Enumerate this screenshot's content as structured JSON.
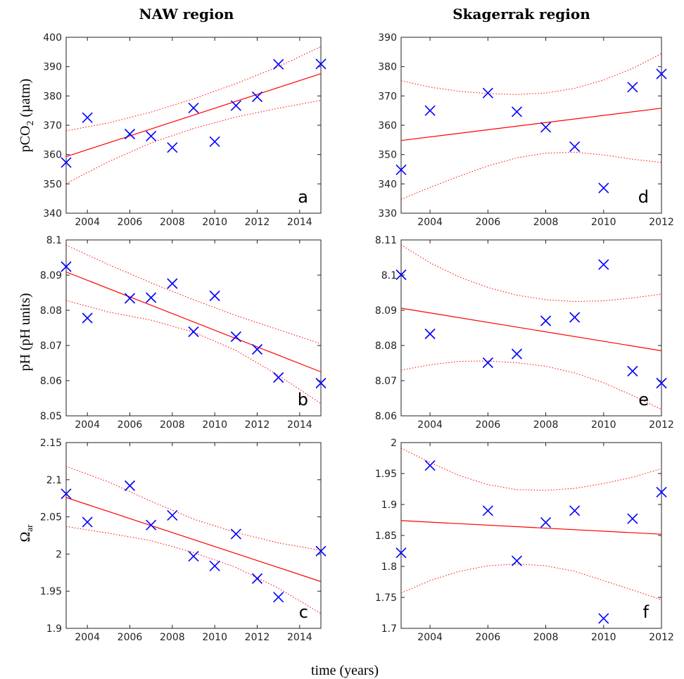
{
  "figure": {
    "column_titles": [
      "NAW region",
      "Skagerrak region"
    ],
    "xlabel": "time (years)",
    "row_ylabels": [
      {
        "main": "pCO",
        "sub": "2",
        "tail": " (µatm)"
      },
      {
        "main": "pH (pH units)",
        "sub": "",
        "tail": ""
      },
      {
        "main": "Ω",
        "sub": "ar",
        "tail": ""
      }
    ],
    "colors": {
      "marker": "#0000ff",
      "fit": "#ff0000",
      "axes": "#222222"
    }
  },
  "chart_data": [
    {
      "id": "a",
      "type": "scatter",
      "panel_label": "a",
      "region": "NAW region",
      "xlim": [
        2003,
        2015
      ],
      "ylim": [
        340,
        400
      ],
      "xticks": [
        2004,
        2006,
        2008,
        2010,
        2012,
        2014
      ],
      "xtick_labels": [
        "2004",
        "2006",
        "2008",
        "2010",
        "2012",
        "2014"
      ],
      "yticks": [
        340,
        350,
        360,
        370,
        380,
        390,
        400
      ],
      "ytick_labels": [
        "340",
        "350",
        "360",
        "370",
        "380",
        "390",
        "400"
      ],
      "x": [
        2003,
        2004,
        2006,
        2007,
        2008,
        2009,
        2010,
        2011,
        2012,
        2013,
        2015
      ],
      "y": [
        357.3,
        372.6,
        367.0,
        366.3,
        362.4,
        375.9,
        364.4,
        376.7,
        379.7,
        390.8,
        390.9
      ],
      "fit": {
        "x": [
          2003,
          2015
        ],
        "y": [
          359.3,
          387.6
        ]
      },
      "ci_upper": {
        "x": [
          2003,
          2005,
          2007,
          2009,
          2011,
          2013,
          2015
        ],
        "y": [
          368.1,
          370.8,
          374.5,
          379.0,
          384.2,
          390.0,
          396.8
        ]
      },
      "ci_lower": {
        "x": [
          2003,
          2005,
          2007,
          2009,
          2011,
          2013,
          2015
        ],
        "y": [
          350.1,
          357.6,
          364.0,
          368.9,
          372.8,
          375.8,
          378.5
        ]
      }
    },
    {
      "id": "b",
      "type": "scatter",
      "panel_label": "b",
      "region": "NAW region",
      "xlim": [
        2003,
        2015
      ],
      "ylim": [
        8.05,
        8.1
      ],
      "xticks": [
        2004,
        2006,
        2008,
        2010,
        2012,
        2014
      ],
      "xtick_labels": [
        "2004",
        "2006",
        "2008",
        "2010",
        "2012",
        "2014"
      ],
      "yticks": [
        8.05,
        8.06,
        8.07,
        8.08,
        8.09,
        8.1
      ],
      "ytick_labels": [
        "8.05",
        "8.06",
        "8.07",
        "8.08",
        "8.09",
        "8.1"
      ],
      "x": [
        2003,
        2004,
        2006,
        2007,
        2008,
        2009,
        2010,
        2011,
        2012,
        2013,
        2015
      ],
      "y": [
        8.0924,
        8.0778,
        8.0834,
        8.0836,
        8.0876,
        8.0739,
        8.0841,
        8.0725,
        8.0689,
        8.0609,
        8.0593
      ],
      "fit": {
        "x": [
          2003,
          2015
        ],
        "y": [
          8.0909,
          8.0625
        ]
      },
      "ci_upper": {
        "x": [
          2003,
          2005,
          2007,
          2009,
          2011,
          2013,
          2015
        ],
        "y": [
          8.0985,
          8.093,
          8.0878,
          8.083,
          8.0785,
          8.0745,
          8.0705
        ]
      },
      "ci_lower": {
        "x": [
          2003,
          2005,
          2007,
          2009,
          2011,
          2013,
          2015
        ],
        "y": [
          8.0828,
          8.0795,
          8.0772,
          8.0738,
          8.0686,
          8.0615,
          8.0535
        ]
      }
    },
    {
      "id": "c",
      "type": "scatter",
      "panel_label": "c",
      "region": "NAW region",
      "xlim": [
        2003,
        2015
      ],
      "ylim": [
        1.9,
        2.15
      ],
      "xticks": [
        2004,
        2006,
        2008,
        2010,
        2012,
        2014
      ],
      "xtick_labels": [
        "2004",
        "2006",
        "2008",
        "2010",
        "2012",
        "2014"
      ],
      "yticks": [
        1.9,
        1.95,
        2.0,
        2.05,
        2.1,
        2.15
      ],
      "ytick_labels": [
        "1.9",
        "1.95",
        "2",
        "2.05",
        "2.1",
        "2.15"
      ],
      "x": [
        2003,
        2004,
        2006,
        2007,
        2008,
        2009,
        2010,
        2011,
        2012,
        2013,
        2015
      ],
      "y": [
        2.081,
        2.043,
        2.092,
        2.039,
        2.052,
        1.997,
        1.984,
        2.027,
        1.967,
        1.942,
        2.004
      ],
      "fit": {
        "x": [
          2003,
          2015
        ],
        "y": [
          2.076,
          1.963
        ]
      },
      "ci_upper": {
        "x": [
          2003,
          2005,
          2007,
          2009,
          2011,
          2013,
          2015
        ],
        "y": [
          2.118,
          2.097,
          2.071,
          2.047,
          2.029,
          2.015,
          2.005
        ]
      },
      "ci_lower": {
        "x": [
          2003,
          2005,
          2007,
          2009,
          2011,
          2013,
          2015
        ],
        "y": [
          2.037,
          2.028,
          2.018,
          2.002,
          1.982,
          1.954,
          1.92
        ]
      }
    },
    {
      "id": "d",
      "type": "scatter",
      "panel_label": "d",
      "region": "Skagerrak region",
      "xlim": [
        2003,
        2012
      ],
      "ylim": [
        330,
        390
      ],
      "xticks": [
        2004,
        2006,
        2008,
        2010,
        2012
      ],
      "xtick_labels": [
        "2004",
        "2006",
        "2008",
        "2010",
        "2012"
      ],
      "yticks": [
        330,
        340,
        350,
        360,
        370,
        380,
        390
      ],
      "ytick_labels": [
        "330",
        "340",
        "350",
        "360",
        "370",
        "380",
        "390"
      ],
      "x": [
        2003,
        2004,
        2006,
        2007,
        2008,
        2009,
        2010,
        2011,
        2012
      ],
      "y": [
        344.8,
        365.0,
        371.0,
        364.6,
        359.3,
        352.7,
        338.6,
        373.0,
        377.5
      ],
      "fit": {
        "x": [
          2003,
          2012
        ],
        "y": [
          354.8,
          365.8
        ]
      },
      "ci_upper": {
        "x": [
          2003,
          2004,
          2005,
          2006,
          2007,
          2008,
          2009,
          2010,
          2011,
          2012
        ],
        "y": [
          375.2,
          373.0,
          371.6,
          370.8,
          370.5,
          371.0,
          372.6,
          375.4,
          379.4,
          384.4
        ]
      },
      "ci_lower": {
        "x": [
          2003,
          2004,
          2005,
          2006,
          2007,
          2008,
          2009,
          2010,
          2011,
          2012
        ],
        "y": [
          334.7,
          338.8,
          342.6,
          346.1,
          348.9,
          350.5,
          350.8,
          349.9,
          348.4,
          347.3
        ]
      }
    },
    {
      "id": "e",
      "type": "scatter",
      "panel_label": "e",
      "region": "Skagerrak region",
      "xlim": [
        2003,
        2012
      ],
      "ylim": [
        8.06,
        8.11
      ],
      "xticks": [
        2004,
        2006,
        2008,
        2010,
        2012
      ],
      "xtick_labels": [
        "2004",
        "2006",
        "2008",
        "2010",
        "2012"
      ],
      "yticks": [
        8.06,
        8.07,
        8.08,
        8.09,
        8.1,
        8.11
      ],
      "ytick_labels": [
        "8.06",
        "8.07",
        "8.08",
        "8.09",
        "8.1",
        "8.11"
      ],
      "x": [
        2003,
        2004,
        2006,
        2007,
        2008,
        2009,
        2010,
        2011,
        2012
      ],
      "y": [
        8.1001,
        8.0833,
        8.0751,
        8.0776,
        8.087,
        8.088,
        8.103,
        8.0727,
        8.0693
      ],
      "fit": {
        "x": [
          2003,
          2012
        ],
        "y": [
          8.0906,
          8.0785
        ]
      },
      "ci_upper": {
        "x": [
          2003,
          2004,
          2005,
          2006,
          2007,
          2008,
          2009,
          2010,
          2011,
          2012
        ],
        "y": [
          8.1086,
          8.1035,
          8.0995,
          8.0965,
          8.0943,
          8.093,
          8.0925,
          8.0927,
          8.0935,
          8.0946
        ]
      },
      "ci_lower": {
        "x": [
          2003,
          2004,
          2005,
          2006,
          2007,
          2008,
          2009,
          2010,
          2011,
          2012
        ],
        "y": [
          8.073,
          8.0745,
          8.0755,
          8.0756,
          8.0751,
          8.0741,
          8.0722,
          8.0694,
          8.0658,
          8.0618
        ]
      }
    },
    {
      "id": "f",
      "type": "scatter",
      "panel_label": "f",
      "region": "Skagerrak region",
      "xlim": [
        2003,
        2012
      ],
      "ylim": [
        1.7,
        2.0
      ],
      "xticks": [
        2004,
        2006,
        2008,
        2010,
        2012
      ],
      "xtick_labels": [
        "2004",
        "2006",
        "2008",
        "2010",
        "2012"
      ],
      "yticks": [
        1.7,
        1.75,
        1.8,
        1.85,
        1.9,
        1.95,
        2.0
      ],
      "ytick_labels": [
        "1.7",
        "1.75",
        "1.8",
        "1.85",
        "1.9",
        "1.95",
        "2"
      ],
      "x": [
        2003,
        2004,
        2006,
        2007,
        2008,
        2009,
        2010,
        2011,
        2012
      ],
      "y": [
        1.822,
        1.963,
        1.89,
        1.809,
        1.871,
        1.89,
        1.716,
        1.877,
        1.92
      ],
      "fit": {
        "x": [
          2003,
          2012
        ],
        "y": [
          1.874,
          1.852
        ]
      },
      "ci_upper": {
        "x": [
          2003,
          2004,
          2005,
          2006,
          2007,
          2008,
          2009,
          2010,
          2011,
          2012
        ],
        "y": [
          1.991,
          1.968,
          1.947,
          1.932,
          1.924,
          1.923,
          1.926,
          1.934,
          1.944,
          1.958
        ]
      },
      "ci_lower": {
        "x": [
          2003,
          2004,
          2005,
          2006,
          2007,
          2008,
          2009,
          2010,
          2011,
          2012
        ],
        "y": [
          1.757,
          1.777,
          1.792,
          1.801,
          1.804,
          1.801,
          1.792,
          1.777,
          1.762,
          1.746
        ]
      }
    }
  ]
}
